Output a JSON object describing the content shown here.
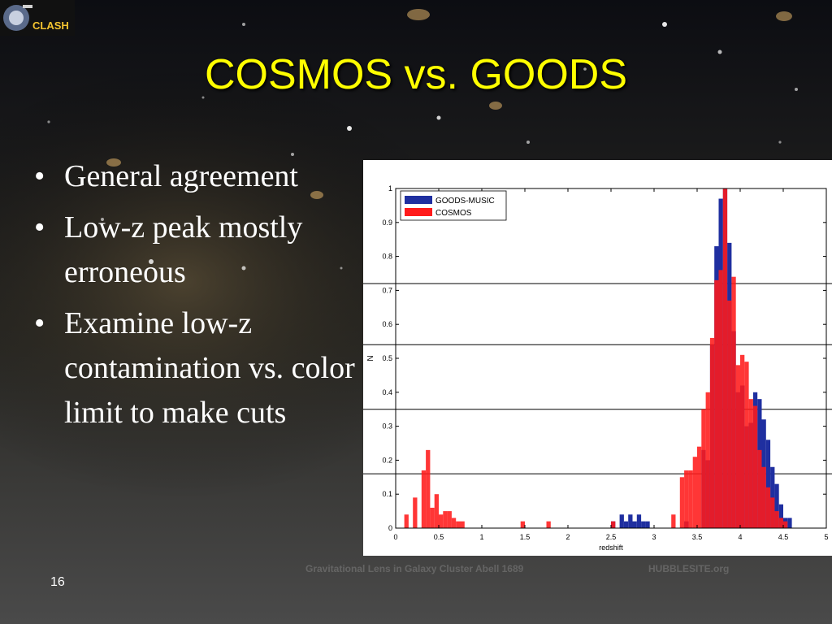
{
  "slide": {
    "title": "COSMOS vs. GOODS",
    "logo_text": "CLASH",
    "bullets": [
      "General agreement",
      "Low-z peak mostly erroneous",
      "Examine low-z contamination vs. color limit to make cuts"
    ],
    "slide_number": "16",
    "watermark_left": "Gravitational Lens in Galaxy Cluster Abell 1689",
    "watermark_right": "HUBBLESITE.org"
  },
  "chart_data": {
    "type": "bar",
    "xlabel": "redshift",
    "ylabel": "N",
    "xlim": [
      0,
      5
    ],
    "ylim": [
      0,
      1
    ],
    "xticks": [
      "0",
      "0.5",
      "1",
      "1.5",
      "2",
      "2.5",
      "3",
      "3.5",
      "4",
      "4.5",
      "5"
    ],
    "yticks": [
      "0",
      "0.1",
      "0.2",
      "0.3",
      "0.4",
      "0.5",
      "0.6",
      "0.7",
      "0.8",
      "0.9",
      "1"
    ],
    "legend_position": "top-left",
    "bin_width": 0.05,
    "series": [
      {
        "name": "GOODS-MUSIC",
        "color": "#1f2fa0",
        "x": [
          2.5,
          2.6,
          2.65,
          2.7,
          2.75,
          2.8,
          2.85,
          2.9,
          3.35,
          3.55,
          3.6,
          3.65,
          3.7,
          3.75,
          3.8,
          3.85,
          3.9,
          3.95,
          4.0,
          4.05,
          4.1,
          4.15,
          4.2,
          4.25,
          4.3,
          4.35,
          4.4,
          4.45,
          4.5,
          4.55
        ],
        "values": [
          0.02,
          0.04,
          0.02,
          0.04,
          0.02,
          0.04,
          0.02,
          0.02,
          0.02,
          0.23,
          0.2,
          0.54,
          0.83,
          0.97,
          1.0,
          0.84,
          0.58,
          0.4,
          0.42,
          0.3,
          0.31,
          0.4,
          0.38,
          0.32,
          0.26,
          0.18,
          0.13,
          0.07,
          0.03,
          0.03
        ]
      },
      {
        "name": "COSMOS",
        "color": "#ff1a1a",
        "x": [
          0.1,
          0.2,
          0.3,
          0.35,
          0.4,
          0.45,
          0.5,
          0.55,
          0.6,
          0.65,
          0.7,
          0.75,
          1.45,
          1.75,
          2.5,
          3.2,
          3.3,
          3.35,
          3.4,
          3.45,
          3.5,
          3.55,
          3.6,
          3.65,
          3.7,
          3.75,
          3.8,
          3.85,
          3.9,
          3.95,
          4.0,
          4.05,
          4.1,
          4.15,
          4.2,
          4.25,
          4.3,
          4.35,
          4.4,
          4.45,
          4.5
        ],
        "values": [
          0.04,
          0.09,
          0.17,
          0.23,
          0.06,
          0.1,
          0.04,
          0.05,
          0.05,
          0.03,
          0.02,
          0.02,
          0.02,
          0.02,
          0.02,
          0.04,
          0.15,
          0.17,
          0.17,
          0.21,
          0.24,
          0.35,
          0.4,
          0.56,
          0.73,
          0.76,
          1.0,
          0.67,
          0.74,
          0.48,
          0.51,
          0.49,
          0.38,
          0.36,
          0.23,
          0.18,
          0.12,
          0.09,
          0.05,
          0.03,
          0.02
        ]
      }
    ]
  }
}
